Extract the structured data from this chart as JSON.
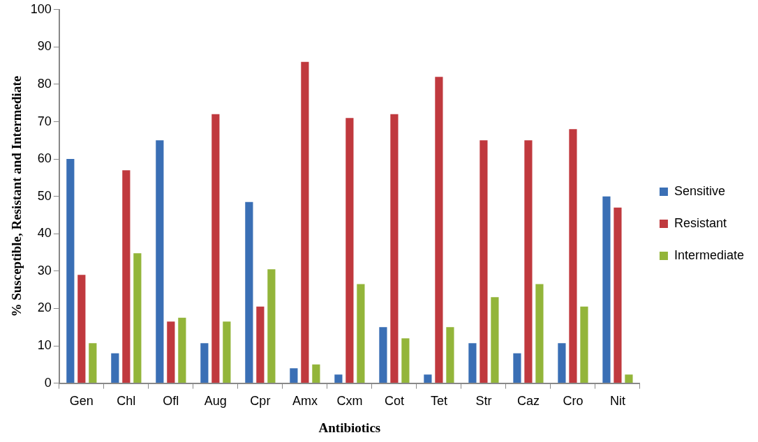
{
  "chart_data": {
    "type": "bar",
    "xlabel": "Antibiotics",
    "ylabel": "% Susceptible, Resistant and Intermediate",
    "categories": [
      "Gen",
      "Chl",
      "Ofl",
      "Aug",
      "Cpr",
      "Amx",
      "Cxm",
      "Cot",
      "Tet",
      "Str",
      "Caz",
      "Cro",
      "Nit"
    ],
    "series": [
      {
        "name": "Sensitive",
        "color": "#3a6fb5",
        "values": [
          60,
          8,
          65,
          10.7,
          48.5,
          4,
          2.3,
          15,
          2.3,
          10.7,
          8,
          10.7,
          50
        ]
      },
      {
        "name": "Resistant",
        "color": "#c0393e",
        "values": [
          29,
          57,
          16.5,
          72,
          20.5,
          86,
          71,
          72,
          82,
          65,
          65,
          68,
          47
        ]
      },
      {
        "name": "Intermediate",
        "color": "#93b53a",
        "values": [
          10.7,
          34.8,
          17.5,
          16.5,
          30.5,
          5,
          26.5,
          12,
          15,
          23,
          26.5,
          20.5,
          2.3
        ]
      }
    ],
    "ylim": [
      0,
      100
    ],
    "yticks": [
      0,
      10,
      20,
      30,
      40,
      50,
      60,
      70,
      80,
      90,
      100
    ],
    "grid": false,
    "legend": "right"
  }
}
